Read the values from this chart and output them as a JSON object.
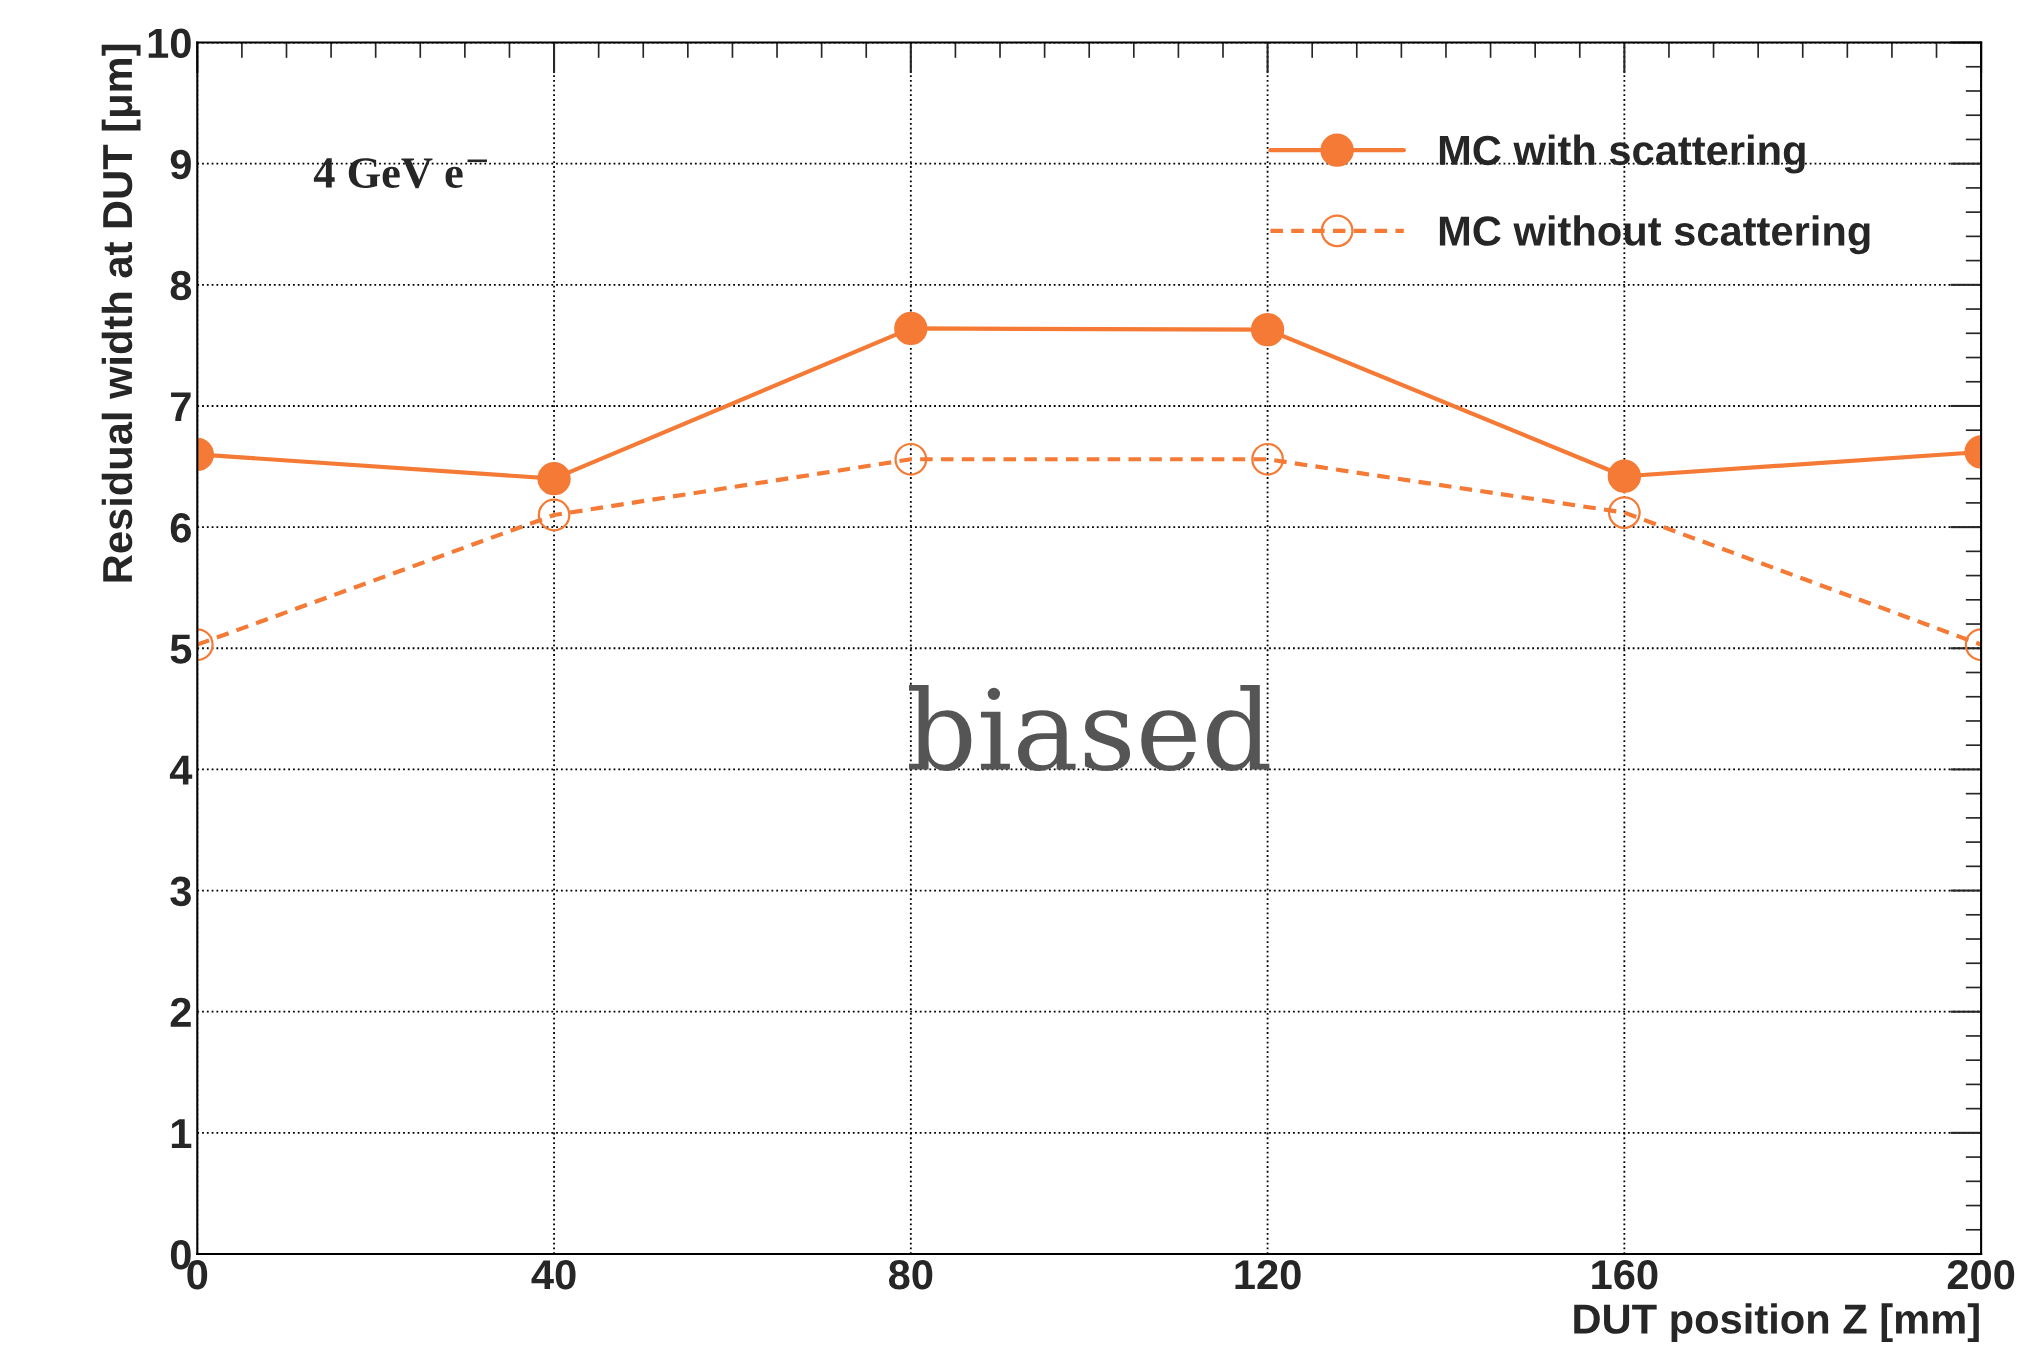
{
  "chart_data": {
    "type": "line",
    "xlabel": "DUT position Z [mm]",
    "ylabel": "Residual width at DUT [μm]",
    "x": [
      0,
      40,
      80,
      120,
      160,
      200
    ],
    "series": [
      {
        "name": "MC with scattering",
        "color": "#f47a35",
        "values": [
          6.6,
          6.4,
          7.64,
          7.63,
          6.42,
          6.62
        ],
        "marker": "circle",
        "line_style": "solid"
      },
      {
        "name": "MC without scattering",
        "color": "#f47a35",
        "values": [
          5.03,
          6.1,
          6.56,
          6.56,
          6.12,
          5.03
        ],
        "marker": "circle",
        "line_style": "dashed"
      }
    ],
    "xlim": [
      0,
      200
    ],
    "xticks": [
      0,
      40,
      80,
      120,
      160,
      200
    ],
    "ylim": [
      0,
      10
    ],
    "yticks": [
      0,
      1,
      2,
      3,
      4,
      5,
      6,
      7,
      8,
      9,
      10
    ],
    "grid": true,
    "legend": "top right",
    "annotations": [
      {
        "text": "4 GeV e$^{−}$"
      },
      {
        "text": "biased"
      }
    ]
  }
}
